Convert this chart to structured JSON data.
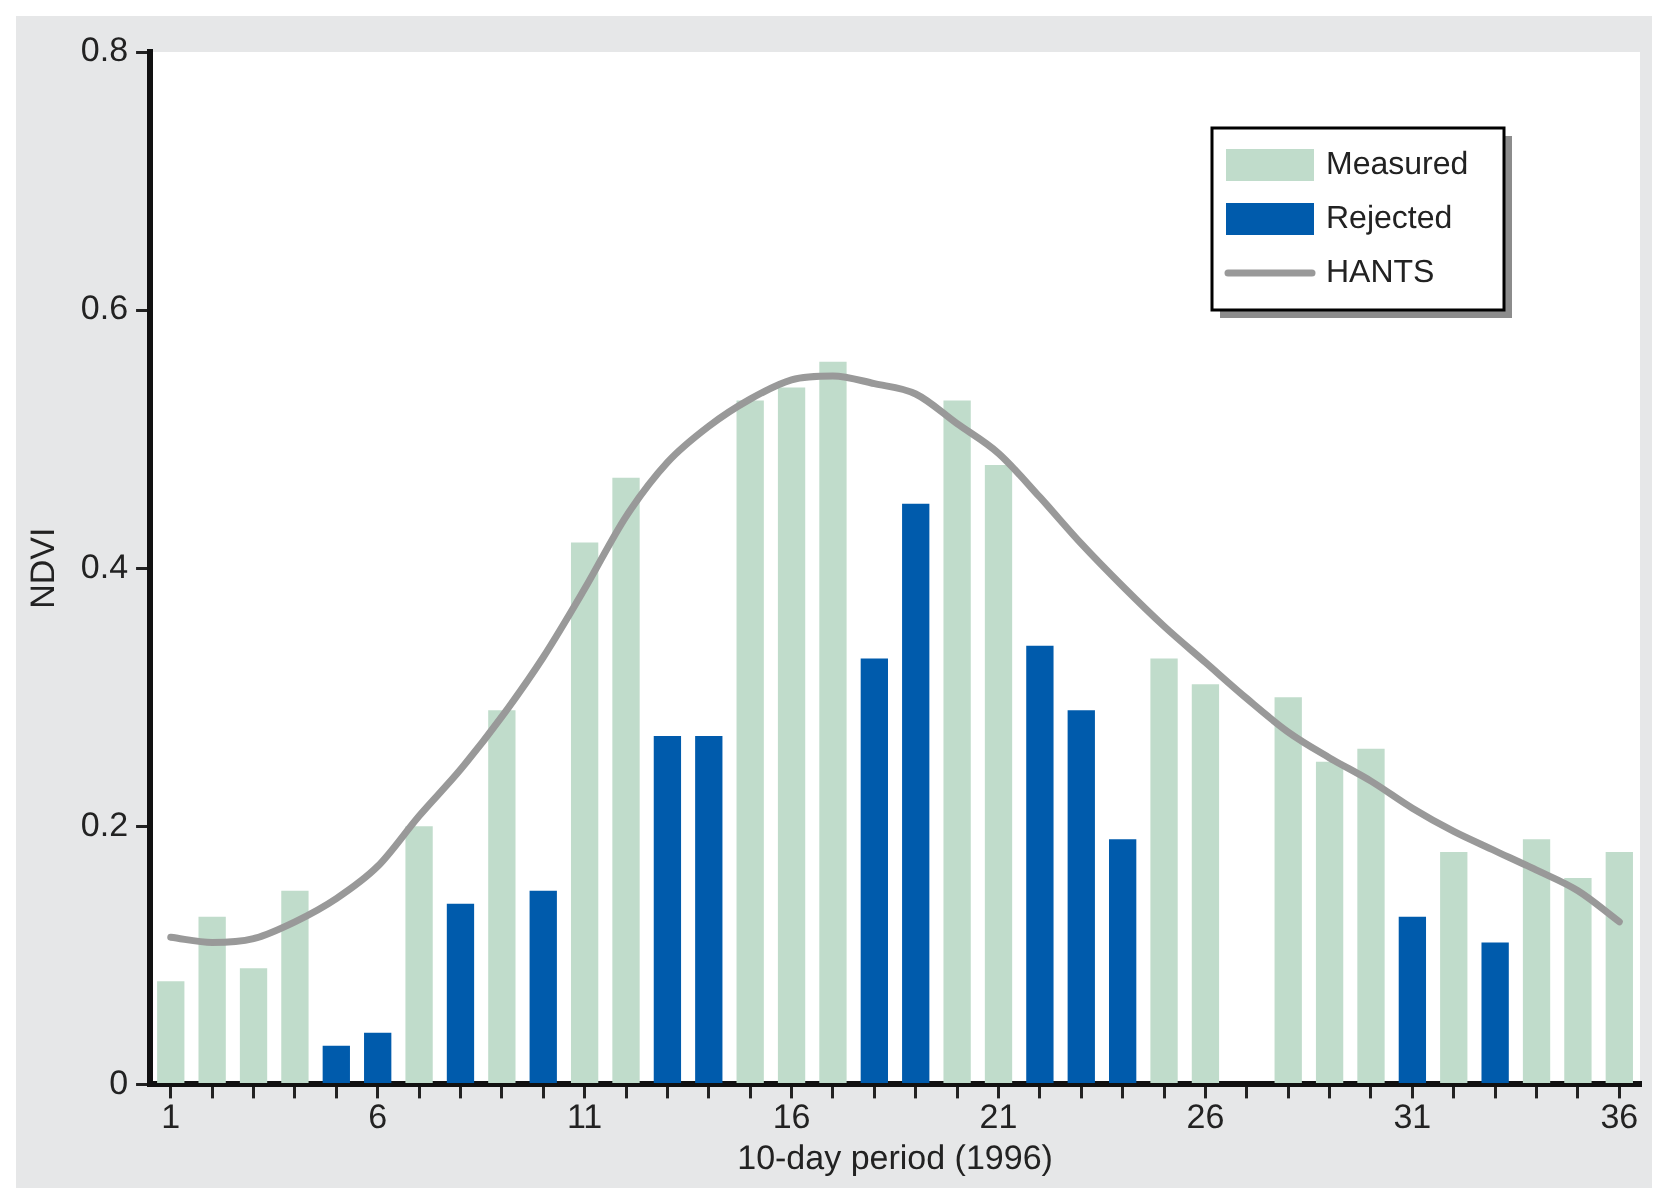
{
  "chart_data": {
    "type": "bar",
    "xlabel": "10-day period (1996)",
    "ylabel": "NDVI",
    "x": [
      1,
      2,
      3,
      4,
      5,
      6,
      7,
      8,
      9,
      10,
      11,
      12,
      13,
      14,
      15,
      16,
      17,
      18,
      19,
      20,
      21,
      22,
      23,
      24,
      25,
      26,
      27,
      28,
      29,
      30,
      31,
      32,
      33,
      34,
      35,
      36
    ],
    "series": [
      {
        "name": "Measured",
        "color": "#c0dccb",
        "values": [
          0.08,
          0.13,
          0.09,
          0.15,
          null,
          null,
          0.2,
          null,
          0.29,
          null,
          0.42,
          0.47,
          null,
          null,
          0.53,
          0.54,
          0.56,
          null,
          null,
          0.53,
          0.48,
          null,
          null,
          null,
          0.33,
          0.31,
          null,
          0.3,
          0.25,
          0.26,
          null,
          0.18,
          null,
          0.19,
          0.16,
          0.18
        ]
      },
      {
        "name": "Rejected",
        "color": "#005bac",
        "values": [
          null,
          null,
          null,
          null,
          0.03,
          0.04,
          null,
          0.14,
          null,
          0.15,
          null,
          null,
          0.27,
          0.27,
          null,
          null,
          null,
          0.33,
          0.45,
          null,
          null,
          0.34,
          0.29,
          0.19,
          null,
          null,
          null,
          null,
          null,
          null,
          0.13,
          null,
          0.11,
          null,
          null,
          null
        ]
      },
      {
        "name": "HANTS",
        "type": "line",
        "color": "#999999",
        "values": [
          0.114,
          0.11,
          0.113,
          0.126,
          0.144,
          0.169,
          0.208,
          0.244,
          0.285,
          0.331,
          0.384,
          0.44,
          0.482,
          0.51,
          0.531,
          0.546,
          0.549,
          0.543,
          0.535,
          0.512,
          0.489,
          0.455,
          0.419,
          0.386,
          0.355,
          0.327,
          0.299,
          0.273,
          0.253,
          0.235,
          0.214,
          0.196,
          0.181,
          0.166,
          0.15,
          0.126
        ]
      }
    ],
    "xlim": [
      0.5,
      36.5
    ],
    "xticks": [
      1,
      {
        "value": 2,
        "label": null
      },
      {
        "value": 3,
        "label": null
      },
      {
        "value": 4,
        "label": null
      },
      {
        "value": 5,
        "label": null
      },
      6,
      {
        "value": 7,
        "label": null
      },
      {
        "value": 8,
        "label": null
      },
      {
        "value": 9,
        "label": null
      },
      {
        "value": 10,
        "label": null
      },
      11,
      {
        "value": 12,
        "label": null
      },
      {
        "value": 13,
        "label": null
      },
      {
        "value": 14,
        "label": null
      },
      {
        "value": 15,
        "label": null
      },
      16,
      {
        "value": 17,
        "label": null
      },
      {
        "value": 18,
        "label": null
      },
      {
        "value": 19,
        "label": null
      },
      {
        "value": 20,
        "label": null
      },
      21,
      {
        "value": 22,
        "label": null
      },
      {
        "value": 23,
        "label": null
      },
      {
        "value": 24,
        "label": null
      },
      {
        "value": 25,
        "label": null
      },
      26,
      {
        "value": 27,
        "label": null
      },
      {
        "value": 28,
        "label": null
      },
      {
        "value": 29,
        "label": null
      },
      {
        "value": 30,
        "label": null
      },
      31,
      {
        "value": 32,
        "label": null
      },
      {
        "value": 33,
        "label": null
      },
      {
        "value": 34,
        "label": null
      },
      {
        "value": 35,
        "label": null
      },
      36
    ],
    "ylim": [
      0,
      0.8
    ],
    "yticks": [
      0,
      0.2,
      0.4,
      0.6,
      0.8
    ],
    "grid": false,
    "legend": "top right"
  }
}
